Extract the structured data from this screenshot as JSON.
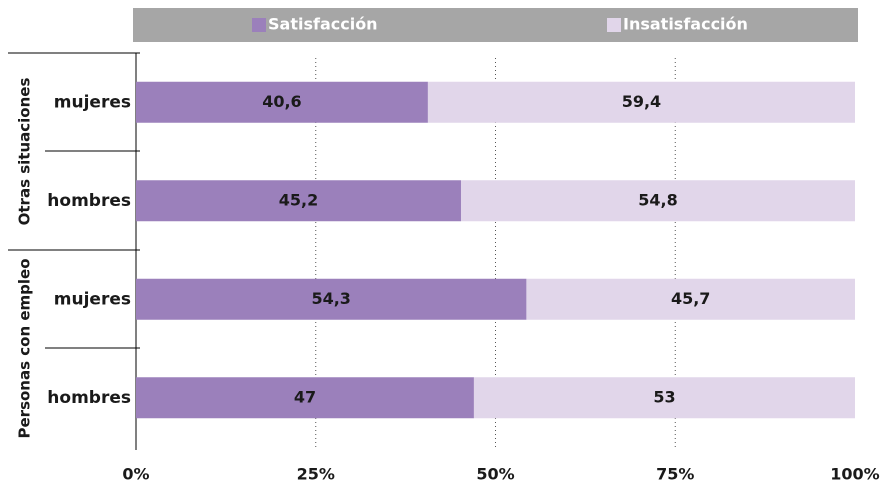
{
  "chart_data": {
    "type": "stacked-barh",
    "groups": [
      "Otras situaciones",
      "Personas con empleo"
    ],
    "categories": [
      "mujeres",
      "hombres",
      "mujeres",
      "hombres"
    ],
    "series": [
      {
        "name": "Satisfacción",
        "color": "#9b80bb",
        "values": [
          40.6,
          45.2,
          54.3,
          47
        ],
        "value_labels": [
          "40,6",
          "45,2",
          "54,3",
          "47"
        ]
      },
      {
        "name": "Insatisfacción",
        "color": "#e1d6ea",
        "values": [
          59.4,
          54.8,
          45.7,
          53
        ],
        "value_labels": [
          "59,4",
          "54,8",
          "45,7",
          "53"
        ]
      }
    ],
    "xlim": [
      0,
      100
    ],
    "xticks": [
      {
        "value": 0,
        "label": "0%"
      },
      {
        "value": 25,
        "label": "25%"
      },
      {
        "value": 50,
        "label": "50%"
      },
      {
        "value": 75,
        "label": "75%"
      },
      {
        "value": 100,
        "label": "100%"
      }
    ],
    "grid": true,
    "legend": "top"
  }
}
